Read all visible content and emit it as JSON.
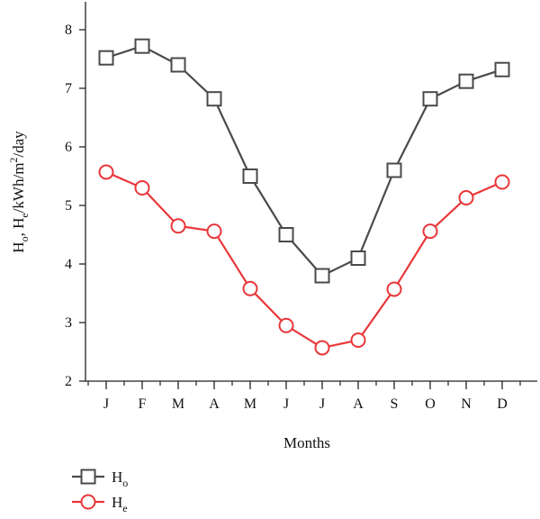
{
  "chart_data": {
    "type": "line",
    "categories": [
      "J",
      "F",
      "M",
      "A",
      "M",
      "J",
      "J",
      "A",
      "S",
      "O",
      "N",
      "D"
    ],
    "xlabel": "Months",
    "ylabel": {
      "p1": "H",
      "s1": "o",
      "p2": ", H",
      "s2": "e",
      "p3": "/kWh/m",
      "s3": "2",
      "p4": "/day"
    },
    "ylim": [
      2,
      8
    ],
    "yticks": [
      "2",
      "3",
      "4",
      "5",
      "6",
      "7",
      "8"
    ],
    "grid": false,
    "legend_position": "bottom-left",
    "series": [
      {
        "name_main": "H",
        "name_sub": "o",
        "marker": "square",
        "color": "#4a4a4a",
        "values": [
          7.52,
          7.72,
          7.4,
          6.82,
          5.5,
          4.5,
          3.8,
          4.1,
          5.6,
          6.82,
          7.12,
          7.32
        ]
      },
      {
        "name_main": "H",
        "name_sub": "e",
        "marker": "circle",
        "color": "#e8373a",
        "values": [
          5.57,
          5.3,
          4.65,
          4.56,
          3.58,
          2.95,
          2.57,
          2.7,
          3.57,
          4.56,
          5.13,
          5.4
        ]
      }
    ]
  }
}
